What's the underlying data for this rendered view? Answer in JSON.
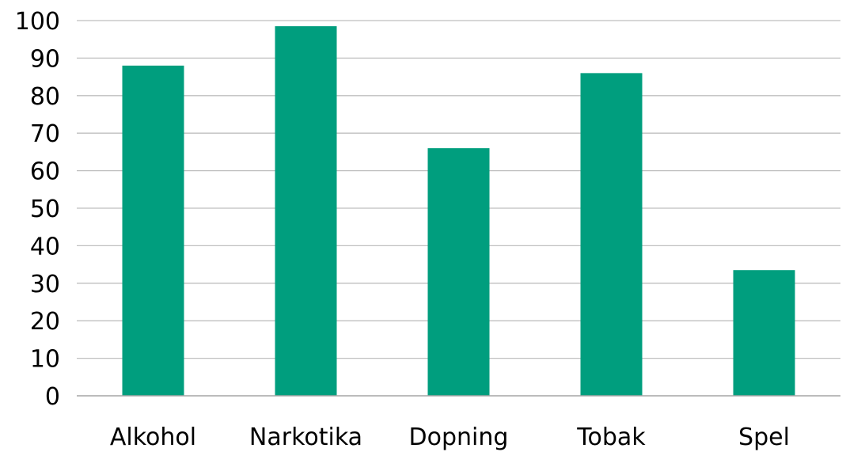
{
  "chart_data": {
    "type": "bar",
    "title": "",
    "xlabel": "",
    "ylabel": "",
    "categories": [
      "Alkohol",
      "Narkotika",
      "Dopning",
      "Tobak",
      "Spel"
    ],
    "values": [
      88,
      98.5,
      66,
      86,
      33.5
    ],
    "ylim": [
      0,
      100
    ],
    "yticks": [
      0,
      10,
      20,
      30,
      40,
      50,
      60,
      70,
      80,
      90,
      100
    ],
    "grid": true,
    "legend": "none",
    "bar_color": "#009e7e"
  }
}
